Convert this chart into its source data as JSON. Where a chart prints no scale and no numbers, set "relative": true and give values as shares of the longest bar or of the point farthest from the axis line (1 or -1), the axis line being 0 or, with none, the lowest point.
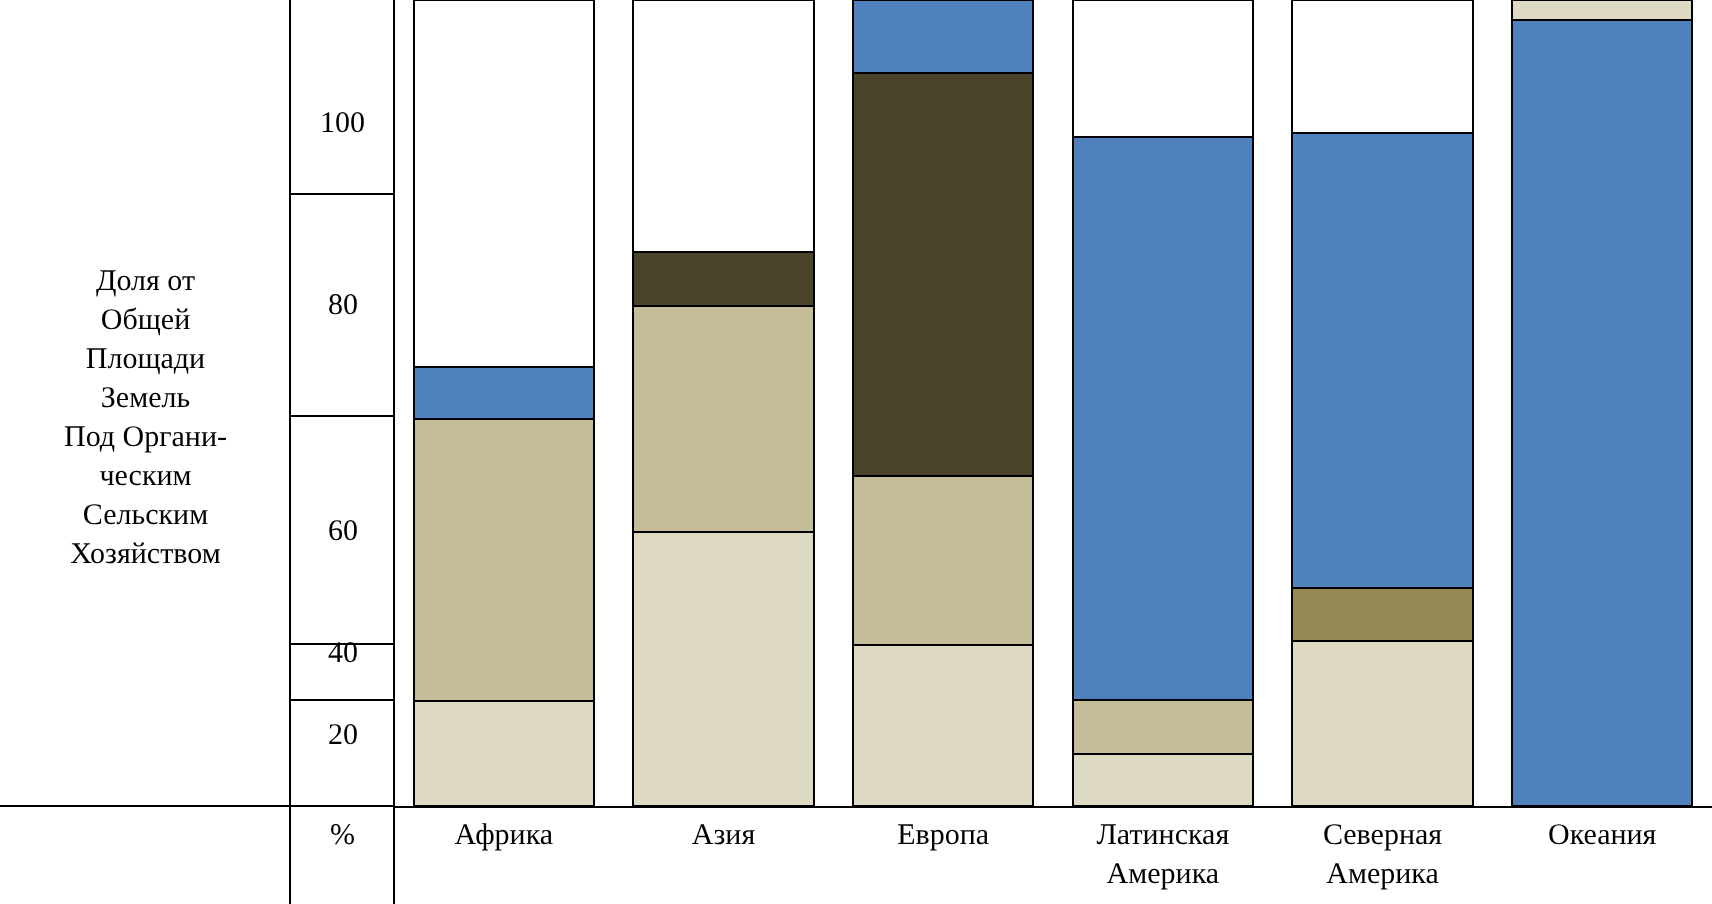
{
  "chart_data": {
    "type": "bar",
    "stacked": true,
    "relative": true,
    "categories": [
      "Африка",
      "Азия",
      "Европа",
      "Латинская Америка",
      "Северная Америка",
      "Океания"
    ],
    "series": [
      {
        "color": "#ddd9c3",
        "values": [
          0.13,
          0.34,
          0.2,
          0.065,
          0.205,
          null
        ]
      },
      {
        "color": "#c4bd97",
        "values": [
          0.35,
          0.28,
          0.21,
          0.067,
          null,
          null
        ]
      },
      {
        "color": "#948a54",
        "values": [
          null,
          null,
          null,
          null,
          0.065,
          null
        ]
      },
      {
        "color": "#4a452a",
        "values": [
          null,
          0.067,
          0.5,
          null,
          null,
          null
        ]
      },
      {
        "color": "#4f81bd",
        "values": [
          0.065,
          null,
          0.09,
          0.698,
          0.565,
          0.975
        ]
      },
      {
        "color": "#ddd9c3",
        "values": [
          null,
          null,
          null,
          null,
          null,
          0.025
        ]
      },
      {
        "color": "#ffffff",
        "values": [
          0.455,
          0.313,
          null,
          0.17,
          0.165,
          null
        ]
      }
    ],
    "annotations": [
      "Доля от\nОбщей\nПлощади\nЗемель\nПод Органи-\nческим\nСельским\nХозяйством",
      "100",
      "80",
      "60",
      "40",
      "20",
      "%"
    ],
    "legend": false
  }
}
